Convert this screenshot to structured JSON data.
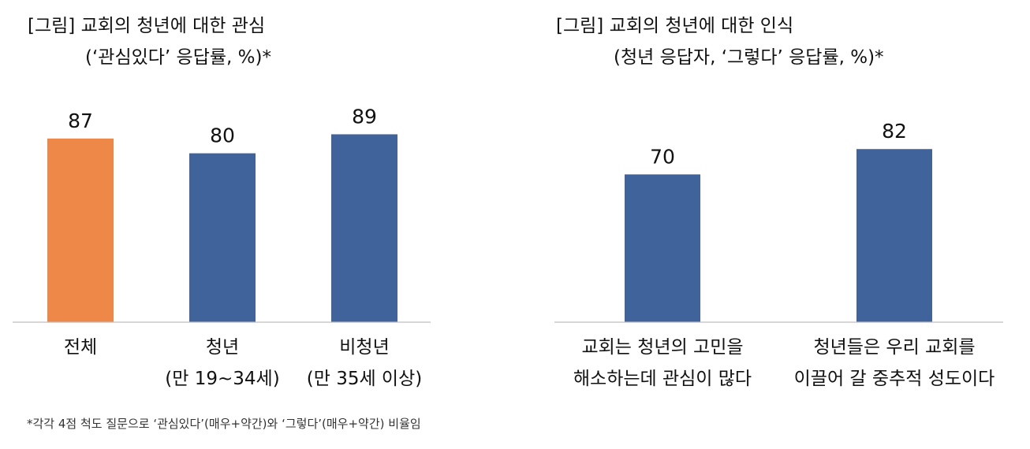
{
  "colors": {
    "highlight": "#EE8848",
    "bar": "#41639B",
    "axis": "#BFBFBF"
  },
  "charts": [
    {
      "title_line1": "[그림] 교회의 청년에 대한 관심",
      "title_line2": "(‘관심있다’ 응답률, %)*"
    },
    {
      "title_line1": "[그림] 교회의 청년에 대한 인식",
      "title_line2": "(청년 응답자, ‘그렇다’ 응답률, %)*"
    }
  ],
  "footnote": "*각각 4점 척도 질문으로 ‘관심있다’(매우+약간)와 ‘그렇다’(매우+약간) 비율임",
  "chart_data": [
    {
      "type": "bar",
      "title": "[그림] 교회의 청년에 대한 관심 (‘관심있다’ 응답률, %)*",
      "categories": [
        [
          "전체"
        ],
        [
          "청년",
          "(만 19~34세)"
        ],
        [
          "비청년",
          "(만 35세 이상)"
        ]
      ],
      "values": [
        87,
        80,
        89
      ],
      "value_labels": [
        "87",
        "80",
        "89"
      ],
      "bar_colors": [
        "#EE8848",
        "#41639B",
        "#41639B"
      ],
      "ylim": [
        0,
        100
      ],
      "grid": false,
      "legend": "none"
    },
    {
      "type": "bar",
      "title": "[그림] 교회의 청년에 대한 인식 (청년 응답자, ‘그렇다’ 응답률, %)*",
      "categories": [
        [
          "교회는 청년의 고민을",
          "해소하는데 관심이 많다"
        ],
        [
          "청년들은 우리 교회를",
          "이끌어 갈 중추적 성도이다"
        ]
      ],
      "values": [
        70,
        82
      ],
      "value_labels": [
        "70",
        "82"
      ],
      "bar_colors": [
        "#41639B",
        "#41639B"
      ],
      "ylim": [
        0,
        100
      ],
      "grid": false,
      "legend": "none"
    }
  ]
}
